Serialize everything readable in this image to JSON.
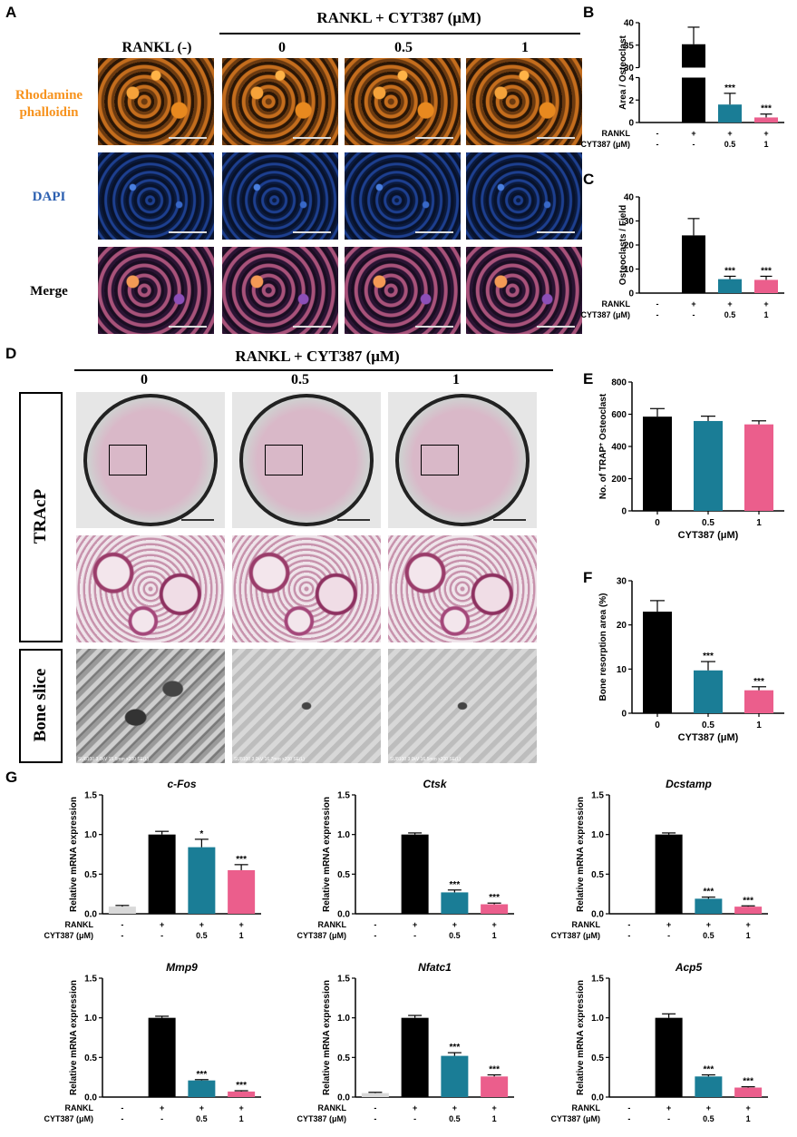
{
  "panel_letters": {
    "A": "A",
    "B": "B",
    "C": "C",
    "D": "D",
    "E": "E",
    "F": "F",
    "G": "G"
  },
  "panelA": {
    "header": "RANKL + CYT387 (μM)",
    "columns": [
      "RANKL (-)",
      "0",
      "0.5",
      "1"
    ],
    "rows": [
      {
        "label": "Rhodamine phalloidin",
        "color": "#f7931e"
      },
      {
        "label": "DAPI",
        "color": "#2b5fb0"
      },
      {
        "label": "Merge",
        "color": "#000000"
      }
    ]
  },
  "panelD": {
    "header": "RANKL + CYT387 (μM)",
    "columns": [
      "0",
      "0.5",
      "1"
    ],
    "rows": [
      "TRAcP",
      "Bone slice"
    ],
    "sem_captions": [
      "SU8100 3.0kV 15.5mm x200 SE(L)",
      "SU8100 3.0kV 16.7mm x200 SE(L)",
      "SU8100 3.0kV 16.5mm x200 SE(L)"
    ]
  },
  "colors": {
    "black": "#000000",
    "teal": "#1a7d96",
    "pink": "#eb5e8c",
    "light_gray": "#d9d9d9"
  },
  "chart_data": [
    {
      "id": "B",
      "type": "bar",
      "broken_axis": true,
      "ylabel": "Area / Osteoclast",
      "yticks_lower": [
        0,
        2,
        4
      ],
      "yticks_upper": [
        30,
        35,
        40
      ],
      "categories": [
        "RANKL(-)",
        "RANKL",
        "0.5",
        "1"
      ],
      "table_rows": [
        {
          "label": "RANKL",
          "values": [
            "-",
            "+",
            "+",
            "+"
          ]
        },
        {
          "label": "CYT387 (μM)",
          "values": [
            "-",
            "-",
            "0.5",
            "1"
          ]
        }
      ],
      "values": [
        0,
        35.2,
        1.6,
        0.45
      ],
      "errors": [
        0,
        3.8,
        1.0,
        0.3
      ],
      "significance": [
        "",
        "",
        "***",
        "***"
      ],
      "bar_colors": [
        "#d9d9d9",
        "#000000",
        "#1a7d96",
        "#eb5e8c"
      ]
    },
    {
      "id": "C",
      "type": "bar",
      "ylabel": "Osteoclasts / Field",
      "ylim": [
        0,
        40
      ],
      "yticks": [
        0,
        10,
        20,
        30,
        40
      ],
      "categories": [
        "RANKL(-)",
        "RANKL",
        "0.5",
        "1"
      ],
      "table_rows": [
        {
          "label": "RANKL",
          "values": [
            "-",
            "+",
            "+",
            "+"
          ]
        },
        {
          "label": "CYT387 (μM)",
          "values": [
            "-",
            "-",
            "0.5",
            "1"
          ]
        }
      ],
      "values": [
        0,
        24,
        5.8,
        5.5
      ],
      "errors": [
        0,
        7,
        1.2,
        1.5
      ],
      "significance": [
        "",
        "",
        "***",
        "***"
      ],
      "bar_colors": [
        "#d9d9d9",
        "#000000",
        "#1a7d96",
        "#eb5e8c"
      ]
    },
    {
      "id": "E",
      "type": "bar",
      "ylabel": "No. of TRAP",
      "ylabel_sup": "+",
      "ylabel_tail": " Osteoclast",
      "xlabel": "CYT387 (μM)",
      "ylim": [
        0,
        800
      ],
      "yticks": [
        0,
        200,
        400,
        600,
        800
      ],
      "categories": [
        "0",
        "0.5",
        "1"
      ],
      "values": [
        585,
        558,
        537
      ],
      "errors": [
        50,
        30,
        22
      ],
      "significance": [
        "",
        "",
        ""
      ],
      "bar_colors": [
        "#000000",
        "#1a7d96",
        "#eb5e8c"
      ]
    },
    {
      "id": "F",
      "type": "bar",
      "ylabel": "Bone resorption area (%)",
      "xlabel": "CYT387 (μM)",
      "ylim": [
        0,
        30
      ],
      "yticks": [
        0,
        10,
        20,
        30
      ],
      "categories": [
        "0",
        "0.5",
        "1"
      ],
      "values": [
        23,
        9.7,
        5.2
      ],
      "errors": [
        2.5,
        2.0,
        0.8
      ],
      "significance": [
        "",
        "***",
        "***"
      ],
      "bar_colors": [
        "#000000",
        "#1a7d96",
        "#eb5e8c"
      ]
    },
    {
      "id": "G1",
      "type": "bar",
      "title": "c-Fos",
      "ylabel": "Relative mRNA expression",
      "ylim": [
        0,
        1.5
      ],
      "yticks": [
        "0.0",
        "0.5",
        "1.0",
        "1.5"
      ],
      "categories": [
        "RANKL(-)",
        "RANKL",
        "0.5",
        "1"
      ],
      "table_rows": [
        {
          "label": "RANKL",
          "values": [
            "-",
            "+",
            "+",
            "+"
          ]
        },
        {
          "label": "CYT387 (μM)",
          "values": [
            "-",
            "-",
            "0.5",
            "1"
          ]
        }
      ],
      "values": [
        0.09,
        1.0,
        0.84,
        0.55
      ],
      "errors": [
        0.015,
        0.04,
        0.1,
        0.07
      ],
      "significance": [
        "",
        "",
        "*",
        "***"
      ],
      "bar_colors": [
        "#d9d9d9",
        "#000000",
        "#1a7d96",
        "#eb5e8c"
      ]
    },
    {
      "id": "G2",
      "type": "bar",
      "title": "Ctsk",
      "ylabel": "Relative mRNA expression",
      "ylim": [
        0,
        1.5
      ],
      "yticks": [
        "0.0",
        "0.5",
        "1.0",
        "1.5"
      ],
      "categories": [
        "RANKL(-)",
        "RANKL",
        "0.5",
        "1"
      ],
      "table_rows": [
        {
          "label": "RANKL",
          "values": [
            "-",
            "+",
            "+",
            "+"
          ]
        },
        {
          "label": "CYT387 (μM)",
          "values": [
            "-",
            "-",
            "0.5",
            "1"
          ]
        }
      ],
      "values": [
        0.0,
        1.0,
        0.27,
        0.12
      ],
      "errors": [
        0,
        0.02,
        0.03,
        0.015
      ],
      "significance": [
        "",
        "",
        "***",
        "***"
      ],
      "bar_colors": [
        "#d9d9d9",
        "#000000",
        "#1a7d96",
        "#eb5e8c"
      ]
    },
    {
      "id": "G3",
      "type": "bar",
      "title": "Dcstamp",
      "ylabel": "Relative mRNA expression",
      "ylim": [
        0,
        1.5
      ],
      "yticks": [
        "0.0",
        "0.5",
        "1.0",
        "1.5"
      ],
      "categories": [
        "RANKL(-)",
        "RANKL",
        "0.5",
        "1"
      ],
      "table_rows": [
        {
          "label": "RANKL",
          "values": [
            "-",
            "+",
            "+",
            "+"
          ]
        },
        {
          "label": "CYT387 (μM)",
          "values": [
            "-",
            "-",
            "0.5",
            "1"
          ]
        }
      ],
      "values": [
        0.0,
        1.0,
        0.19,
        0.09
      ],
      "errors": [
        0,
        0.02,
        0.02,
        0.01
      ],
      "significance": [
        "",
        "",
        "***",
        "***"
      ],
      "bar_colors": [
        "#d9d9d9",
        "#000000",
        "#1a7d96",
        "#eb5e8c"
      ]
    },
    {
      "id": "G4",
      "type": "bar",
      "title": "Mmp9",
      "ylabel": "Relative mRNA expression",
      "ylim": [
        0,
        1.5
      ],
      "yticks": [
        "0.0",
        "0.5",
        "1.0",
        "1.5"
      ],
      "categories": [
        "RANKL(-)",
        "RANKL",
        "0.5",
        "1"
      ],
      "table_rows": [
        {
          "label": "RANKL",
          "values": [
            "-",
            "+",
            "+",
            "+"
          ]
        },
        {
          "label": "CYT387 (μM)",
          "values": [
            "-",
            "-",
            "0.5",
            "1"
          ]
        }
      ],
      "values": [
        0.0,
        1.0,
        0.21,
        0.07
      ],
      "errors": [
        0,
        0.02,
        0.01,
        0.01
      ],
      "significance": [
        "",
        "",
        "***",
        "***"
      ],
      "bar_colors": [
        "#d9d9d9",
        "#000000",
        "#1a7d96",
        "#eb5e8c"
      ]
    },
    {
      "id": "G5",
      "type": "bar",
      "title": "Nfatc1",
      "ylabel": "Relative mRNA expression",
      "ylim": [
        0,
        1.5
      ],
      "yticks": [
        "0.0",
        "0.5",
        "1.0",
        "1.5"
      ],
      "categories": [
        "RANKL(-)",
        "RANKL",
        "0.5",
        "1"
      ],
      "table_rows": [
        {
          "label": "RANKL",
          "values": [
            "-",
            "+",
            "+",
            "+"
          ]
        },
        {
          "label": "CYT387 (μM)",
          "values": [
            "-",
            "-",
            "0.5",
            "1"
          ]
        }
      ],
      "values": [
        0.05,
        1.0,
        0.52,
        0.26
      ],
      "errors": [
        0.01,
        0.03,
        0.04,
        0.02
      ],
      "significance": [
        "",
        "",
        "***",
        "***"
      ],
      "bar_colors": [
        "#d9d9d9",
        "#000000",
        "#1a7d96",
        "#eb5e8c"
      ]
    },
    {
      "id": "G6",
      "type": "bar",
      "title": "Acp5",
      "ylabel": "Relative mRNA expression",
      "ylim": [
        0,
        1.5
      ],
      "yticks": [
        "0.0",
        "0.5",
        "1.0",
        "1.5"
      ],
      "categories": [
        "RANKL(-)",
        "RANKL",
        "0.5",
        "1"
      ],
      "table_rows": [
        {
          "label": "RANKL",
          "values": [
            "-",
            "+",
            "+",
            "+"
          ]
        },
        {
          "label": "CYT387 (μM)",
          "values": [
            "-",
            "-",
            "0.5",
            "1"
          ]
        }
      ],
      "values": [
        0.0,
        1.0,
        0.26,
        0.12
      ],
      "errors": [
        0,
        0.05,
        0.02,
        0.01
      ],
      "significance": [
        "",
        "",
        "***",
        "***"
      ],
      "bar_colors": [
        "#d9d9d9",
        "#000000",
        "#1a7d96",
        "#eb5e8c"
      ]
    }
  ]
}
